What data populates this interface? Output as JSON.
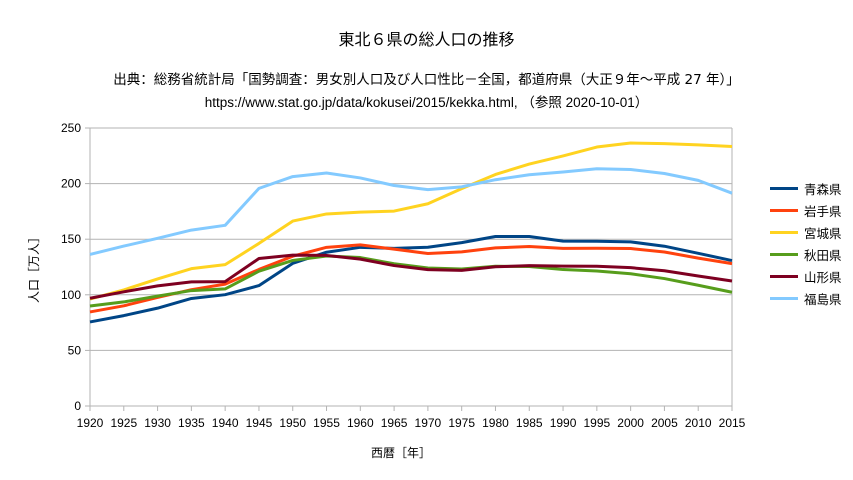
{
  "chart_data": {
    "type": "line",
    "title": "東北６県の総人口の推移",
    "subtitle_lines": [
      "出典：総務省統計局「国勢調査：男女別人口及び人口性比－全国，都道府県（大正９年～平成 27 年）」",
      "https://www.stat.go.jp/data/kokusei/2015/kekka.html, （参照  2020-10-01）"
    ],
    "xlabel": "西暦［年］",
    "ylabel": "人口［万人］",
    "ylim": [
      0,
      250
    ],
    "yticks": [
      0,
      50,
      100,
      150,
      200,
      250
    ],
    "grid": true,
    "legend_position": "right",
    "x": [
      1920,
      1925,
      1930,
      1935,
      1940,
      1945,
      1950,
      1955,
      1960,
      1965,
      1970,
      1975,
      1980,
      1985,
      1990,
      1995,
      2000,
      2005,
      2010,
      2015
    ],
    "series": [
      {
        "name": "青森県",
        "color": "#004586",
        "values": [
          75.6,
          81.3,
          88.0,
          96.7,
          100.1,
          108.3,
          128.3,
          138.3,
          142.7,
          141.7,
          142.8,
          146.9,
          152.4,
          152.4,
          148.3,
          148.2,
          147.6,
          143.7,
          137.3,
          130.8
        ]
      },
      {
        "name": "岩手県",
        "color": "#ff420e",
        "values": [
          84.6,
          90.1,
          97.6,
          104.6,
          109.6,
          122.8,
          134.7,
          142.7,
          144.9,
          141.1,
          137.1,
          138.6,
          142.2,
          143.4,
          141.7,
          141.9,
          141.6,
          138.5,
          133.0,
          128.0
        ]
      },
      {
        "name": "宮城県",
        "color": "#ffd320",
        "values": [
          96.2,
          104.4,
          114.3,
          123.5,
          127.1,
          146.2,
          166.3,
          172.7,
          174.3,
          175.3,
          181.9,
          195.5,
          208.2,
          217.6,
          224.9,
          232.9,
          236.5,
          236.0,
          234.8,
          233.4
        ]
      },
      {
        "name": "秋田県",
        "color": "#579d1c",
        "values": [
          89.9,
          93.6,
          98.8,
          103.8,
          105.3,
          121.2,
          130.9,
          134.9,
          133.5,
          127.9,
          124.1,
          123.2,
          125.7,
          125.4,
          122.7,
          121.4,
          118.9,
          114.6,
          108.6,
          102.3
        ]
      },
      {
        "name": "山形県",
        "color": "#7e0021",
        "values": [
          96.9,
          102.7,
          108.0,
          111.6,
          111.9,
          132.6,
          135.7,
          135.4,
          132.1,
          126.3,
          122.6,
          122.0,
          125.2,
          126.2,
          125.8,
          125.7,
          124.4,
          121.6,
          116.9,
          112.4
        ]
      },
      {
        "name": "福島県",
        "color": "#83caff",
        "values": [
          136.3,
          143.8,
          150.8,
          158.2,
          162.5,
          195.7,
          206.3,
          209.5,
          205.1,
          198.3,
          194.6,
          197.1,
          203.5,
          208.0,
          210.4,
          213.4,
          212.7,
          209.1,
          202.9,
          191.4
        ]
      }
    ]
  }
}
